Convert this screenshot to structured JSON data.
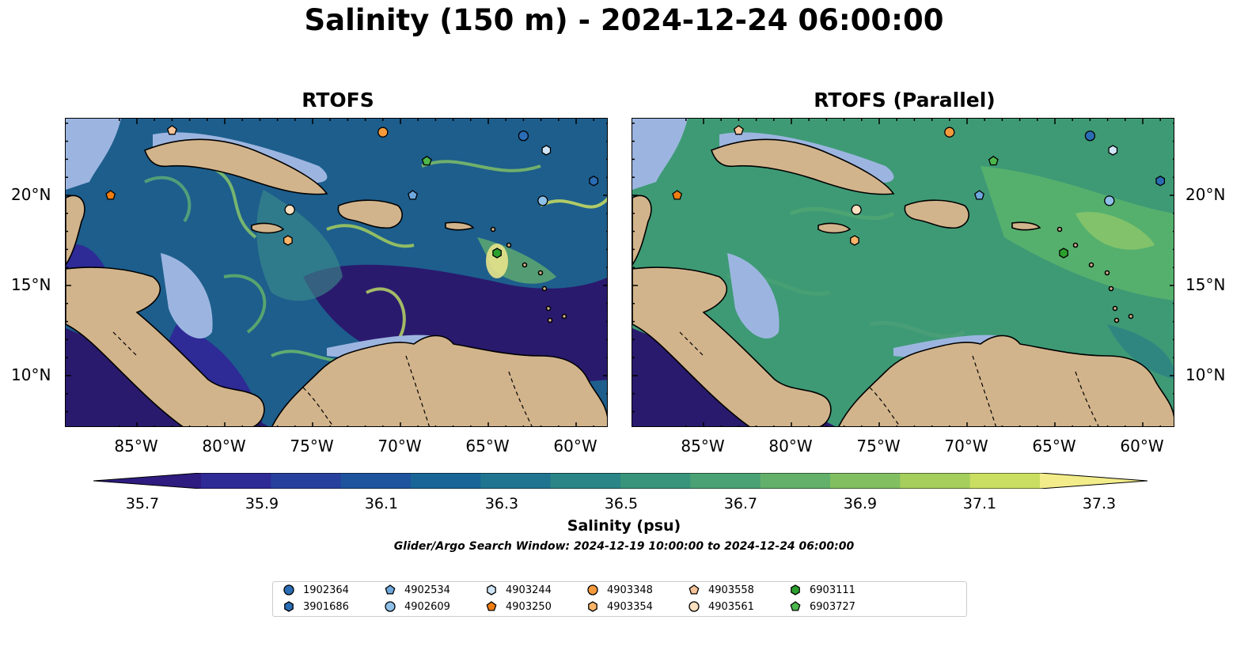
{
  "title": "Salinity (150 m) - 2024-12-24 06:00:00",
  "panels": [
    {
      "title": "RTOFS",
      "ocean_color": "#1d5e8c",
      "variant": "rtofs"
    },
    {
      "title": "RTOFS (Parallel)",
      "ocean_color": "#3e9a75",
      "variant": "parallel"
    }
  ],
  "axes": {
    "lon_ticks": [
      "85°W",
      "80°W",
      "75°W",
      "70°W",
      "65°W",
      "60°W"
    ],
    "lat_ticks": [
      "20°N",
      "15°N",
      "10°N"
    ]
  },
  "colors": {
    "land": "#d2b48c",
    "shelf": "#9cb5e0",
    "deep_low": "#2a1a6e"
  },
  "colorbar": {
    "label": "Salinity (psu)",
    "ticks": [
      "35.7",
      "35.9",
      "36.1",
      "36.3",
      "36.5",
      "36.7",
      "36.9",
      "37.1",
      "37.3"
    ],
    "colors": [
      "#2e1c80",
      "#2e2a96",
      "#27409e",
      "#1e549e",
      "#1a6597",
      "#1f7590",
      "#2a8586",
      "#38947b",
      "#4aa274",
      "#62b06a",
      "#81bf61",
      "#a5ce5d",
      "#cade62",
      "#f2ec8a"
    ]
  },
  "search_window": "Glider/Argo Search Window: 2024-12-19 10:00:00 to 2024-12-24 06:00:00",
  "legend": [
    {
      "id": "1902364",
      "shape": "circle",
      "color": "#2a6db5"
    },
    {
      "id": "3901686",
      "shape": "hexagon",
      "color": "#2a6db5"
    },
    {
      "id": "4902534",
      "shape": "pentagon",
      "color": "#6fa8dc"
    },
    {
      "id": "4902609",
      "shape": "circle",
      "color": "#8ec0e8"
    },
    {
      "id": "4903244",
      "shape": "hexagon",
      "color": "#cfe5f7"
    },
    {
      "id": "4903250",
      "shape": "pentagon",
      "color": "#f07d12"
    },
    {
      "id": "4903348",
      "shape": "circle",
      "color": "#f59a3c"
    },
    {
      "id": "4903354",
      "shape": "hexagon",
      "color": "#fab56a"
    },
    {
      "id": "4903558",
      "shape": "pentagon",
      "color": "#f6c49a"
    },
    {
      "id": "4903561",
      "shape": "circle",
      "color": "#fde0c0"
    },
    {
      "id": "6903111",
      "shape": "hexagon",
      "color": "#2ca02c"
    },
    {
      "id": "6903727",
      "shape": "pentagon",
      "color": "#4cb84c"
    }
  ]
}
